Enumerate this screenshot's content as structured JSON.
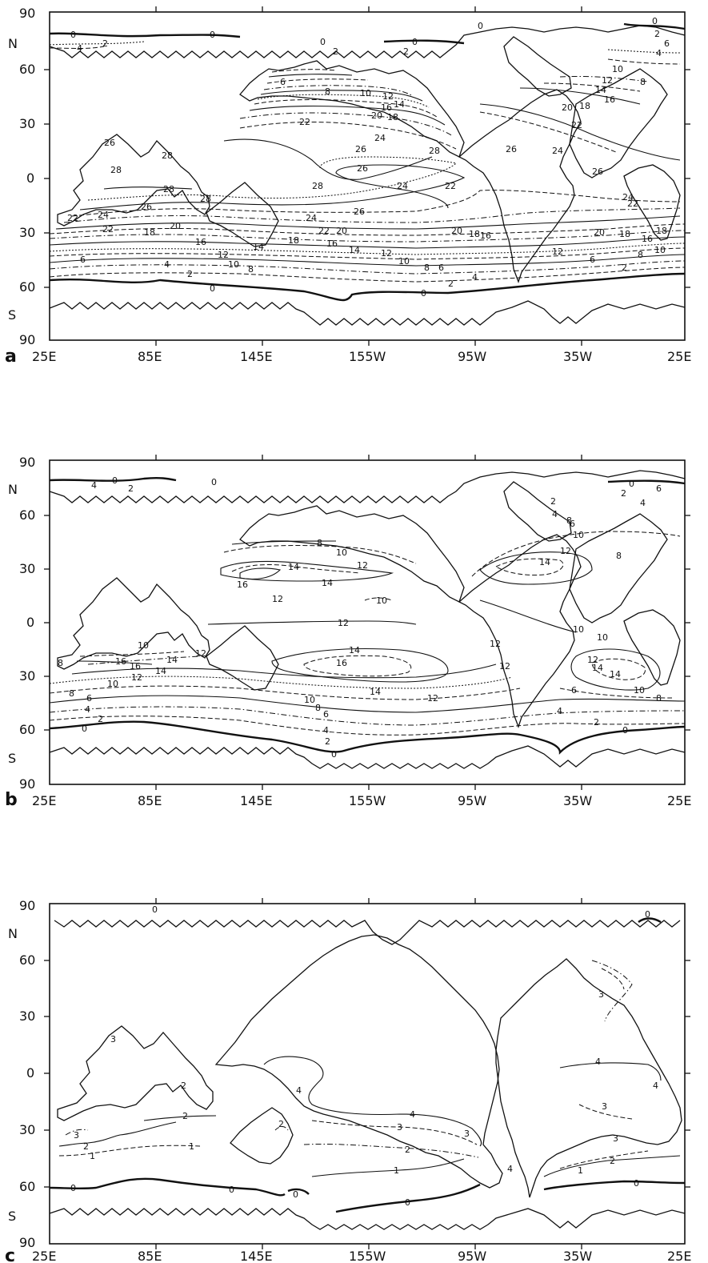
{
  "panels": [
    {
      "letter": "a",
      "lat_labels": [
        "90",
        "60",
        "30",
        "0",
        "30",
        "60",
        "90"
      ],
      "hemisphere_labels": [
        "N",
        "S"
      ],
      "lon_labels": [
        "25E",
        "85E",
        "145E",
        "155W",
        "95W",
        "35W",
        "25E"
      ],
      "contour_labels": [
        "0",
        "2",
        "4",
        "6",
        "8",
        "10",
        "12",
        "14",
        "16",
        "18",
        "20",
        "22",
        "24",
        "26",
        "28"
      ]
    },
    {
      "letter": "b",
      "lat_labels": [
        "90",
        "60",
        "30",
        "0",
        "30",
        "60",
        "90"
      ],
      "hemisphere_labels": [
        "N",
        "S"
      ],
      "lon_labels": [
        "25E",
        "85E",
        "145E",
        "155W",
        "95W",
        "35W",
        "25E"
      ],
      "contour_labels": [
        "0",
        "2",
        "4",
        "6",
        "8",
        "10",
        "12",
        "14",
        "16"
      ]
    },
    {
      "letter": "c",
      "lat_labels": [
        "90",
        "60",
        "30",
        "0",
        "30",
        "60",
        "90"
      ],
      "hemisphere_labels": [
        "N",
        "S"
      ],
      "lon_labels": [
        "25E",
        "85E",
        "145E",
        "155W",
        "95W",
        "35W",
        "25E"
      ],
      "contour_labels": [
        "0",
        "1",
        "2",
        "3",
        "4"
      ]
    }
  ]
}
